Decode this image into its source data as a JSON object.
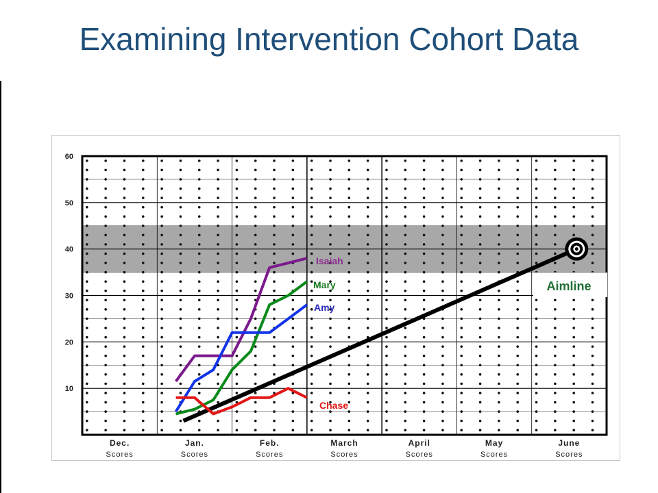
{
  "title": "Examining Intervention Cohort Data",
  "chart_data": {
    "type": "line",
    "title": "Examining Intervention Cohort Data",
    "xlabel": "",
    "ylabel": "",
    "ylim": [
      0,
      60
    ],
    "yticks": [
      10,
      20,
      30,
      40,
      50,
      60
    ],
    "xlim": [
      0,
      7
    ],
    "categories": [
      {
        "month": "Dec.",
        "sub": "Scores"
      },
      {
        "month": "Jan.",
        "sub": "Scores"
      },
      {
        "month": "Feb.",
        "sub": "Scores"
      },
      {
        "month": "March",
        "sub": "Scores"
      },
      {
        "month": "April",
        "sub": "Scores"
      },
      {
        "month": "May",
        "sub": "Scores"
      },
      {
        "month": "June",
        "sub": "Scores"
      }
    ],
    "band": {
      "from": 35,
      "to": 45,
      "color": "#a8a8a8"
    },
    "grid": true,
    "series": [
      {
        "name": "Isaiah",
        "color": "#7b1a8c",
        "labelColor": "#8b2a8f",
        "x": [
          1.25,
          1.5,
          1.75,
          2.0,
          2.25,
          2.5,
          2.75,
          3.0
        ],
        "y": [
          11.5,
          17,
          17,
          17,
          25,
          36,
          37,
          38
        ]
      },
      {
        "name": "Mary",
        "color": "#0a8a1a",
        "labelColor": "#1a7a22",
        "x": [
          1.25,
          1.5,
          1.75,
          2.0,
          2.25,
          2.5,
          2.75,
          3.0
        ],
        "y": [
          4.5,
          5.5,
          7.5,
          14,
          18,
          28,
          30,
          33
        ]
      },
      {
        "name": "Amy",
        "color": "#1234e8",
        "labelColor": "#2a2ab8",
        "x": [
          1.25,
          1.5,
          1.75,
          2.0,
          2.25,
          2.5,
          2.75,
          3.0
        ],
        "y": [
          5,
          11.5,
          14,
          22,
          22,
          22,
          25,
          28
        ]
      },
      {
        "name": "Chase",
        "color": "#e21616",
        "labelColor": "#e21616",
        "x": [
          1.25,
          1.5,
          1.75,
          2.0,
          2.25,
          2.5,
          2.75,
          3.0
        ],
        "y": [
          8,
          8,
          4.5,
          6,
          8,
          8,
          10,
          8
        ]
      }
    ],
    "aimline": {
      "name": "Aimline",
      "color": "#000000",
      "x": [
        1.35,
        6.6
      ],
      "y": [
        3,
        40
      ]
    },
    "target": {
      "x": 6.6,
      "y": 40
    }
  }
}
